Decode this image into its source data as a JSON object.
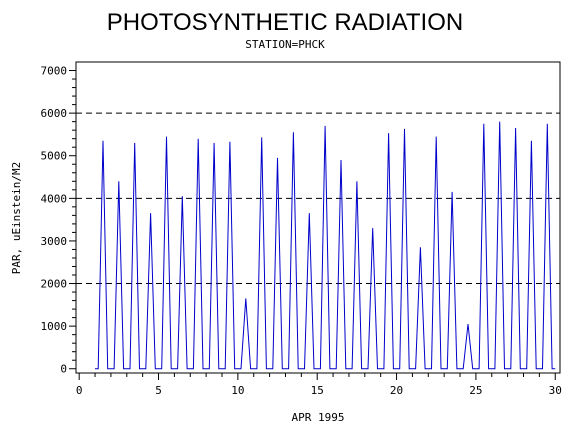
{
  "chart_data": {
    "type": "line",
    "title": "PHOTOSYNTHETIC RADIATION",
    "subtitle": "STATION=PHCK",
    "xlabel": "APR 1995",
    "ylabel": "PAR, uEinstein/M2",
    "xlim": [
      -0.2,
      30.3
    ],
    "ylim": [
      -100,
      7200
    ],
    "x_ticks": [
      0,
      5,
      10,
      15,
      20,
      25,
      30
    ],
    "y_ticks": [
      0,
      1000,
      2000,
      3000,
      4000,
      5000,
      6000,
      7000
    ],
    "reference_lines": [
      2000,
      4000,
      6000
    ],
    "grid": false,
    "legend": "none",
    "line_color": "#0000cc",
    "series": [
      {
        "x": [
          1.0,
          1.2,
          1.5,
          1.8,
          2.0,
          2.2,
          2.5,
          2.8,
          3.0,
          3.2,
          3.5,
          3.8,
          4.0,
          4.2,
          4.5,
          4.8,
          5.0,
          5.2,
          5.5,
          5.8,
          6.0,
          6.2,
          6.5,
          6.8,
          7.0,
          7.2,
          7.5,
          7.8,
          8.0,
          8.2,
          8.5,
          8.8,
          9.0,
          9.2,
          9.5,
          9.8,
          10.0,
          10.2,
          10.5,
          10.8,
          11.0,
          11.2,
          11.5,
          11.8,
          12.0,
          12.2,
          12.5,
          12.8,
          13.0,
          13.2,
          13.5,
          13.8,
          14.0,
          14.2,
          14.5,
          14.8,
          15.0,
          15.2,
          15.5,
          15.8,
          16.0,
          16.2,
          16.5,
          16.8,
          17.0,
          17.2,
          17.5,
          17.8,
          18.0,
          18.2,
          18.5,
          18.8,
          19.0,
          19.2,
          19.5,
          19.8,
          20.0,
          20.2,
          20.5,
          20.8,
          21.0,
          21.2,
          21.5,
          21.8,
          22.0,
          22.2,
          22.5,
          22.8,
          23.0,
          23.2,
          23.5,
          23.8,
          24.0,
          24.2,
          24.5,
          24.8,
          25.0,
          25.2,
          25.5,
          25.8,
          26.0,
          26.2,
          26.5,
          26.8,
          27.0,
          27.2,
          27.5,
          27.8,
          28.0,
          28.2,
          28.5,
          28.8,
          29.0,
          29.2,
          29.5,
          29.8,
          30.0
        ],
        "y": [
          0,
          0,
          5350,
          0,
          0,
          0,
          4400,
          0,
          0,
          0,
          5300,
          0,
          0,
          0,
          3650,
          0,
          0,
          0,
          5450,
          0,
          0,
          0,
          4050,
          0,
          0,
          0,
          5400,
          0,
          0,
          0,
          5300,
          0,
          0,
          0,
          5330,
          0,
          0,
          0,
          1650,
          0,
          0,
          0,
          5430,
          0,
          0,
          0,
          4950,
          0,
          0,
          0,
          5550,
          0,
          0,
          0,
          3650,
          0,
          0,
          0,
          5700,
          0,
          0,
          0,
          4900,
          0,
          0,
          0,
          4400,
          0,
          0,
          0,
          3300,
          0,
          0,
          0,
          5530,
          0,
          0,
          0,
          5630,
          0,
          0,
          0,
          2850,
          0,
          0,
          0,
          5450,
          0,
          0,
          0,
          4150,
          0,
          0,
          0,
          1050,
          0,
          0,
          0,
          5750,
          0,
          0,
          0,
          5800,
          0,
          0,
          0,
          5650,
          0,
          0,
          0,
          5350,
          0,
          0,
          0,
          5750,
          0,
          0
        ]
      }
    ]
  }
}
